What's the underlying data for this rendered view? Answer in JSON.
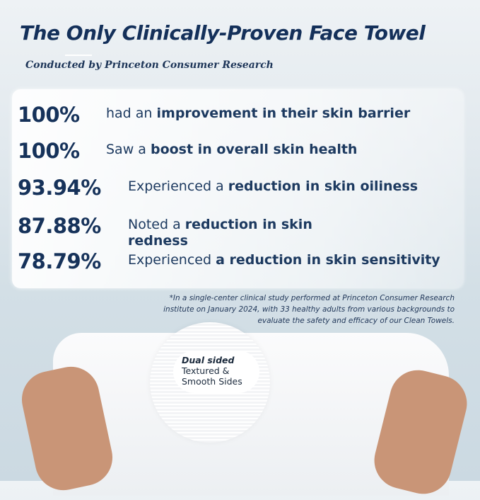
{
  "title": "The Only Clinically-Proven Face Towel",
  "subtitle": "Conducted by Princeton Consumer Research",
  "stats": [
    {
      "value": "100%",
      "pre": "had an ",
      "bold": "improvement in their skin barrier",
      "post": ""
    },
    {
      "value": "100%",
      "pre": "Saw a ",
      "bold": "boost in overall skin health",
      "post": ""
    },
    {
      "value": "93.94%",
      "pre": "Experienced a ",
      "bold": "reduction in skin oiliness",
      "post": ""
    },
    {
      "value": "87.88%",
      "pre": "Noted a ",
      "bold": "reduction in skin redness",
      "post": ""
    },
    {
      "value": "78.79%",
      "pre": "Experienced ",
      "bold": "a reduction in skin sensitivity",
      "post": ""
    }
  ],
  "footnote": "*In a single-center clinical study performed at Princeton Consumer Research institute on January 2024, with 33 healthy adults from various backgrounds to evaluate the safety and efficacy of our Clean Towels.",
  "badge": {
    "title": "Dual sided",
    "line1": "Textured &",
    "line2": "Smooth Sides"
  }
}
